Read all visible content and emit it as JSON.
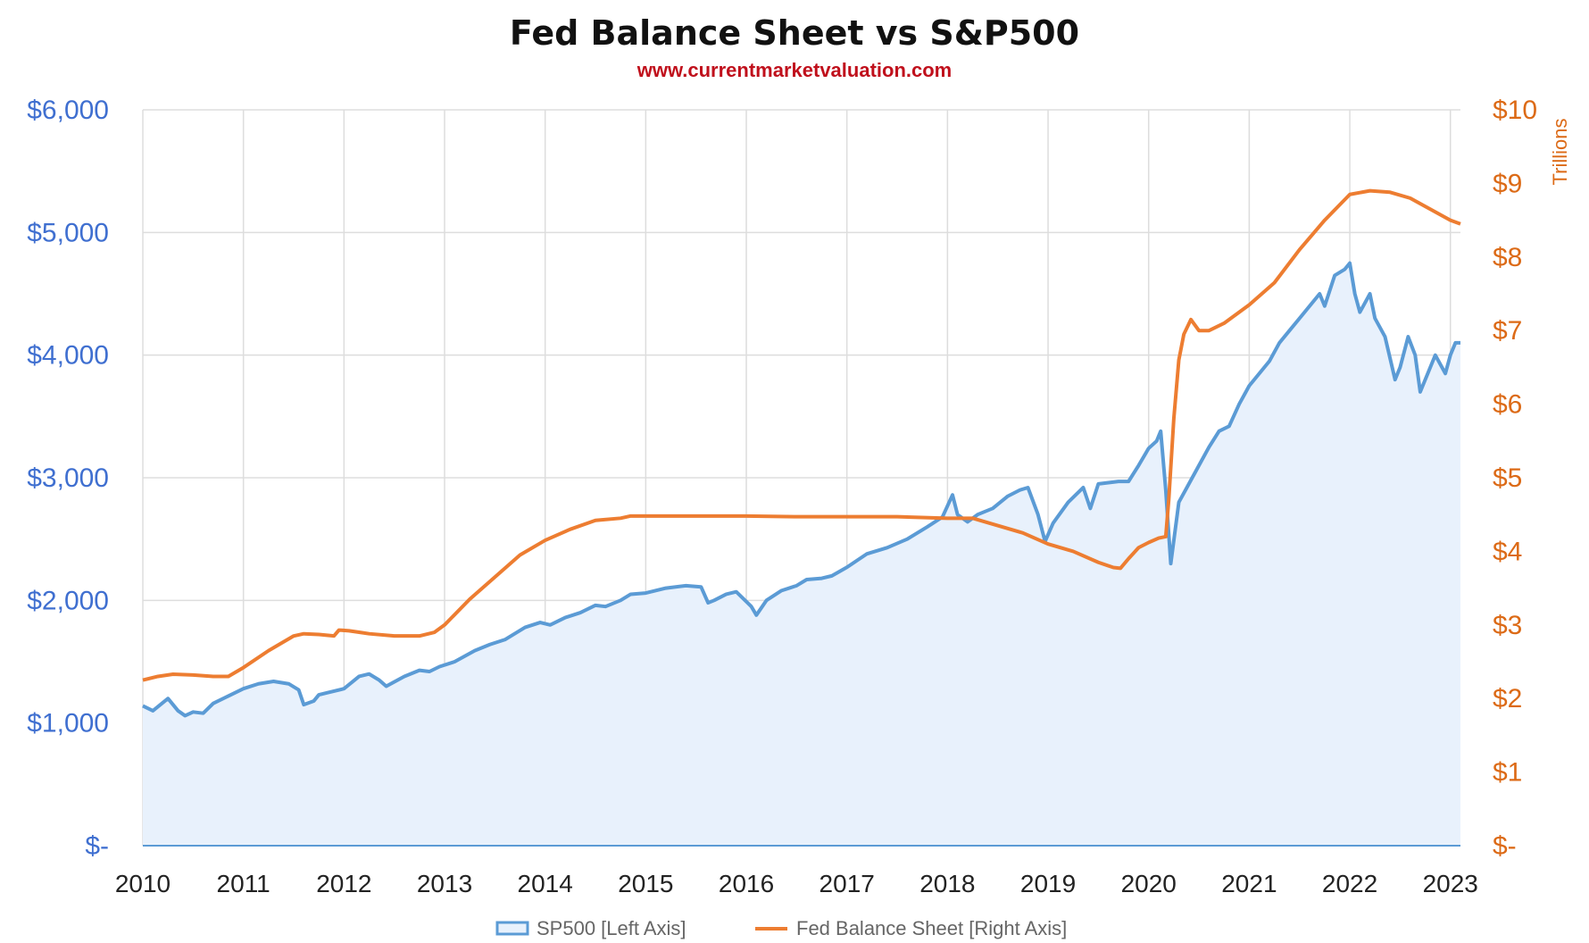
{
  "chart_data": {
    "type": "line",
    "title": "Fed Balance Sheet vs S&P500",
    "subtitle": "www.currentmarketvaluation.com",
    "right_axis_label": "Trillions",
    "x_ticks": [
      "2010",
      "2011",
      "2012",
      "2013",
      "2014",
      "2015",
      "2016",
      "2017",
      "2018",
      "2019",
      "2020",
      "2021",
      "2022",
      "2023"
    ],
    "xlim": [
      2010,
      2023.1
    ],
    "left_axis": {
      "ylim": [
        0,
        6000
      ],
      "ticks": [
        0,
        1000,
        2000,
        3000,
        4000,
        5000,
        6000
      ],
      "tick_labels": [
        "$-",
        "$1,000",
        "$2,000",
        "$3,000",
        "$4,000",
        "$5,000",
        "$6,000"
      ]
    },
    "right_axis": {
      "ylim": [
        0,
        10
      ],
      "ticks": [
        0,
        1,
        2,
        3,
        4,
        5,
        6,
        7,
        8,
        9,
        10
      ],
      "tick_labels": [
        "$-",
        "$1",
        "$2",
        "$3",
        "$4",
        "$5",
        "$6",
        "$7",
        "$8",
        "$9",
        "$10"
      ]
    },
    "legend_position": "bottom-center",
    "colors": {
      "sp500_line": "#5b9bd5",
      "sp500_fill": "#e8f1fc",
      "fed_line": "#ed7d31",
      "left_axis_text": "#3f6fd0",
      "right_axis_text": "#dc6a16",
      "grid": "#dddddd",
      "baseline": "#5b9bd5",
      "subtitle": "#c0101c"
    },
    "series": [
      {
        "name": "SP500 [Left Axis]",
        "axis": "left",
        "style": "area",
        "x": [
          2010.0,
          2010.1,
          2010.25,
          2010.35,
          2010.42,
          2010.5,
          2010.6,
          2010.7,
          2010.85,
          2011.0,
          2011.15,
          2011.3,
          2011.45,
          2011.55,
          2011.6,
          2011.7,
          2011.75,
          2011.85,
          2012.0,
          2012.15,
          2012.25,
          2012.35,
          2012.42,
          2012.6,
          2012.75,
          2012.85,
          2012.95,
          2013.1,
          2013.3,
          2013.45,
          2013.6,
          2013.8,
          2013.95,
          2014.05,
          2014.2,
          2014.35,
          2014.5,
          2014.6,
          2014.75,
          2014.85,
          2015.0,
          2015.2,
          2015.4,
          2015.55,
          2015.62,
          2015.68,
          2015.8,
          2015.9,
          2016.05,
          2016.1,
          2016.2,
          2016.35,
          2016.5,
          2016.6,
          2016.75,
          2016.85,
          2017.0,
          2017.2,
          2017.4,
          2017.6,
          2017.8,
          2017.95,
          2018.05,
          2018.1,
          2018.2,
          2018.3,
          2018.45,
          2018.6,
          2018.72,
          2018.8,
          2018.9,
          2018.97,
          2019.05,
          2019.2,
          2019.35,
          2019.42,
          2019.5,
          2019.6,
          2019.7,
          2019.8,
          2019.9,
          2020.0,
          2020.08,
          2020.12,
          2020.17,
          2020.22,
          2020.3,
          2020.4,
          2020.5,
          2020.6,
          2020.7,
          2020.8,
          2020.9,
          2021.0,
          2021.1,
          2021.2,
          2021.3,
          2021.4,
          2021.5,
          2021.6,
          2021.7,
          2021.75,
          2021.85,
          2021.95,
          2022.0,
          2022.05,
          2022.1,
          2022.2,
          2022.25,
          2022.35,
          2022.45,
          2022.5,
          2022.58,
          2022.65,
          2022.7,
          2022.75,
          2022.8,
          2022.85,
          2022.95,
          2023.0,
          2023.05,
          2023.1
        ],
        "values": [
          1140,
          1100,
          1200,
          1100,
          1060,
          1090,
          1080,
          1160,
          1220,
          1280,
          1320,
          1340,
          1320,
          1270,
          1150,
          1180,
          1230,
          1250,
          1280,
          1380,
          1400,
          1350,
          1300,
          1380,
          1430,
          1420,
          1460,
          1500,
          1590,
          1640,
          1680,
          1780,
          1820,
          1800,
          1860,
          1900,
          1960,
          1950,
          2000,
          2050,
          2060,
          2100,
          2120,
          2110,
          1980,
          2000,
          2050,
          2070,
          1950,
          1880,
          2000,
          2080,
          2120,
          2170,
          2180,
          2200,
          2270,
          2380,
          2430,
          2500,
          2600,
          2680,
          2860,
          2700,
          2640,
          2700,
          2750,
          2850,
          2900,
          2920,
          2700,
          2480,
          2630,
          2800,
          2920,
          2750,
          2950,
          2960,
          2970,
          2970,
          3100,
          3240,
          3300,
          3380,
          2900,
          2300,
          2800,
          2950,
          3100,
          3250,
          3380,
          3420,
          3600,
          3750,
          3850,
          3950,
          4100,
          4200,
          4300,
          4400,
          4500,
          4400,
          4650,
          4700,
          4750,
          4500,
          4350,
          4500,
          4300,
          4150,
          3800,
          3900,
          4150,
          4000,
          3700,
          3800,
          3900,
          4000,
          3850,
          4000,
          4100,
          4100
        ]
      },
      {
        "name": "Fed Balance Sheet [Right Axis]",
        "axis": "right",
        "style": "line",
        "x": [
          2010.0,
          2010.15,
          2010.3,
          2010.5,
          2010.7,
          2010.85,
          2011.0,
          2011.25,
          2011.5,
          2011.6,
          2011.75,
          2011.9,
          2011.95,
          2012.05,
          2012.15,
          2012.25,
          2012.5,
          2012.75,
          2012.9,
          2013.0,
          2013.25,
          2013.5,
          2013.75,
          2014.0,
          2014.25,
          2014.5,
          2014.75,
          2014.85,
          2015.0,
          2015.5,
          2016.0,
          2016.5,
          2017.0,
          2017.5,
          2018.0,
          2018.25,
          2018.5,
          2018.75,
          2019.0,
          2019.25,
          2019.5,
          2019.65,
          2019.72,
          2019.8,
          2019.9,
          2020.0,
          2020.1,
          2020.17,
          2020.2,
          2020.25,
          2020.3,
          2020.35,
          2020.42,
          2020.5,
          2020.6,
          2020.75,
          2021.0,
          2021.25,
          2021.5,
          2021.75,
          2022.0,
          2022.2,
          2022.4,
          2022.6,
          2022.8,
          2023.0,
          2023.1
        ],
        "values": [
          2.25,
          2.3,
          2.33,
          2.32,
          2.3,
          2.3,
          2.42,
          2.65,
          2.85,
          2.88,
          2.87,
          2.85,
          2.93,
          2.92,
          2.9,
          2.88,
          2.85,
          2.85,
          2.9,
          3.0,
          3.35,
          3.65,
          3.95,
          4.15,
          4.3,
          4.42,
          4.45,
          4.48,
          4.48,
          4.48,
          4.48,
          4.47,
          4.47,
          4.47,
          4.45,
          4.45,
          4.35,
          4.25,
          4.1,
          4.0,
          3.85,
          3.78,
          3.77,
          3.9,
          4.05,
          4.12,
          4.18,
          4.2,
          4.7,
          5.8,
          6.6,
          6.95,
          7.15,
          7.0,
          7.0,
          7.1,
          7.35,
          7.65,
          8.1,
          8.5,
          8.85,
          8.9,
          8.88,
          8.8,
          8.65,
          8.5,
          8.45
        ]
      }
    ]
  }
}
